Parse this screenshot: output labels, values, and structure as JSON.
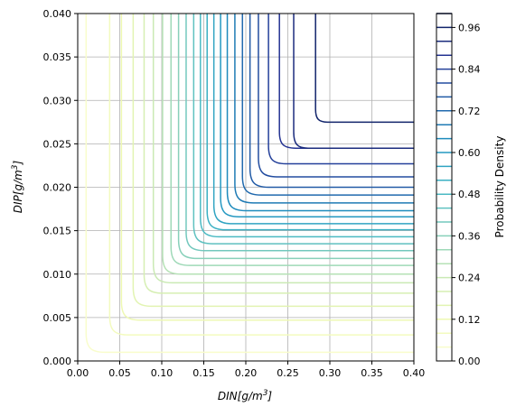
{
  "chart_data": {
    "type": "contour",
    "xlabel_base": "DIN",
    "xlabel_unit_pre": "[g/m",
    "xlabel_unit_exp": "3",
    "xlabel_unit_post": "]",
    "ylabel_base": "DIP",
    "ylabel_unit_pre": "[g/m",
    "ylabel_unit_exp": "3",
    "ylabel_unit_post": "]",
    "xlim": [
      0.0,
      0.4
    ],
    "ylim": [
      0.0,
      0.04
    ],
    "x_ticks": [
      "0.00",
      "0.05",
      "0.10",
      "0.15",
      "0.20",
      "0.25",
      "0.30",
      "0.35",
      "0.40"
    ],
    "y_ticks": [
      "0.000",
      "0.005",
      "0.010",
      "0.015",
      "0.020",
      "0.025",
      "0.030",
      "0.035",
      "0.040"
    ],
    "grid": true,
    "colormap": "YlGnBu",
    "colorbar": {
      "label": "Probability Density",
      "range": [
        0.0,
        1.0
      ],
      "ticks": [
        "0.00",
        "0.12",
        "0.24",
        "0.36",
        "0.48",
        "0.60",
        "0.72",
        "0.84",
        "0.96"
      ],
      "level_step": 0.04
    },
    "contours": [
      {
        "level": 0.04,
        "x_asymptote": 0.01,
        "y_asymptote": 0.001
      },
      {
        "level": 0.08,
        "x_asymptote": 0.038,
        "y_asymptote": 0.003
      },
      {
        "level": 0.12,
        "x_asymptote": 0.052,
        "y_asymptote": 0.0047
      },
      {
        "level": 0.16,
        "x_asymptote": 0.066,
        "y_asymptote": 0.0063
      },
      {
        "level": 0.2,
        "x_asymptote": 0.079,
        "y_asymptote": 0.0078
      },
      {
        "level": 0.24,
        "x_asymptote": 0.09,
        "y_asymptote": 0.009
      },
      {
        "level": 0.28,
        "x_asymptote": 0.101,
        "y_asymptote": 0.01
      },
      {
        "level": 0.32,
        "x_asymptote": 0.111,
        "y_asymptote": 0.011
      },
      {
        "level": 0.36,
        "x_asymptote": 0.12,
        "y_asymptote": 0.0118
      },
      {
        "level": 0.4,
        "x_asymptote": 0.129,
        "y_asymptote": 0.0127
      },
      {
        "level": 0.44,
        "x_asymptote": 0.138,
        "y_asymptote": 0.0135
      },
      {
        "level": 0.48,
        "x_asymptote": 0.146,
        "y_asymptote": 0.0143
      },
      {
        "level": 0.52,
        "x_asymptote": 0.154,
        "y_asymptote": 0.0151
      },
      {
        "level": 0.56,
        "x_asymptote": 0.162,
        "y_asymptote": 0.0158
      },
      {
        "level": 0.6,
        "x_asymptote": 0.17,
        "y_asymptote": 0.0166
      },
      {
        "level": 0.64,
        "x_asymptote": 0.178,
        "y_asymptote": 0.0173
      },
      {
        "level": 0.68,
        "x_asymptote": 0.187,
        "y_asymptote": 0.0182
      },
      {
        "level": 0.72,
        "x_asymptote": 0.196,
        "y_asymptote": 0.0191
      },
      {
        "level": 0.76,
        "x_asymptote": 0.205,
        "y_asymptote": 0.02
      },
      {
        "level": 0.8,
        "x_asymptote": 0.215,
        "y_asymptote": 0.0212
      },
      {
        "level": 0.84,
        "x_asymptote": 0.227,
        "y_asymptote": 0.0227
      },
      {
        "level": 0.88,
        "x_asymptote": 0.24,
        "y_asymptote": 0.0245
      },
      {
        "level": 0.92,
        "x_asymptote": 0.257,
        "y_asymptote": 0.0245
      },
      {
        "level": 0.96,
        "x_asymptote": 0.283,
        "y_asymptote": 0.0275
      }
    ]
  }
}
